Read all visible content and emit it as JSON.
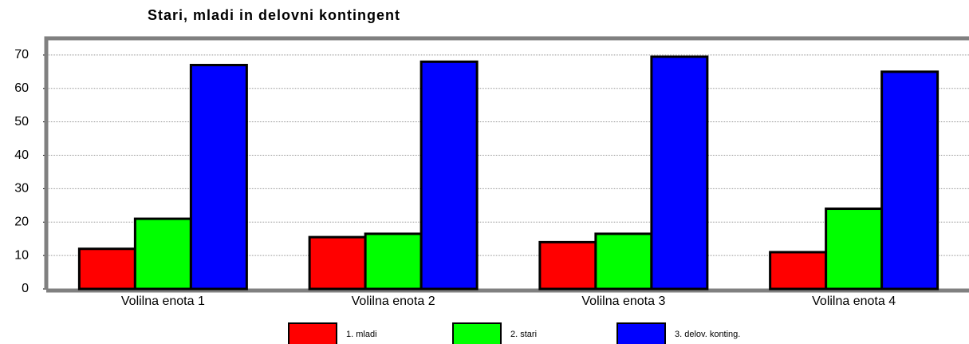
{
  "chart_data": {
    "type": "bar",
    "title": "Stari, mladi in delovni kontingent",
    "categories": [
      "Volilna enota 1",
      "Volilna enota 2",
      "Volilna enota 3",
      "Volilna enota 4"
    ],
    "series": [
      {
        "name": "1. mladi",
        "color": "#ff0000",
        "values": [
          12,
          15.5,
          14,
          11
        ]
      },
      {
        "name": "2. stari",
        "color": "#00ff00",
        "values": [
          21,
          16.5,
          16.5,
          24
        ]
      },
      {
        "name": "3. delov. konting.",
        "color": "#0000ff",
        "values": [
          67,
          68,
          69.5,
          65
        ]
      }
    ],
    "ylim": [
      0,
      75
    ],
    "yticks": [
      0,
      10,
      20,
      30,
      40,
      50,
      60,
      70
    ],
    "grid": true,
    "legend": "bottom"
  }
}
